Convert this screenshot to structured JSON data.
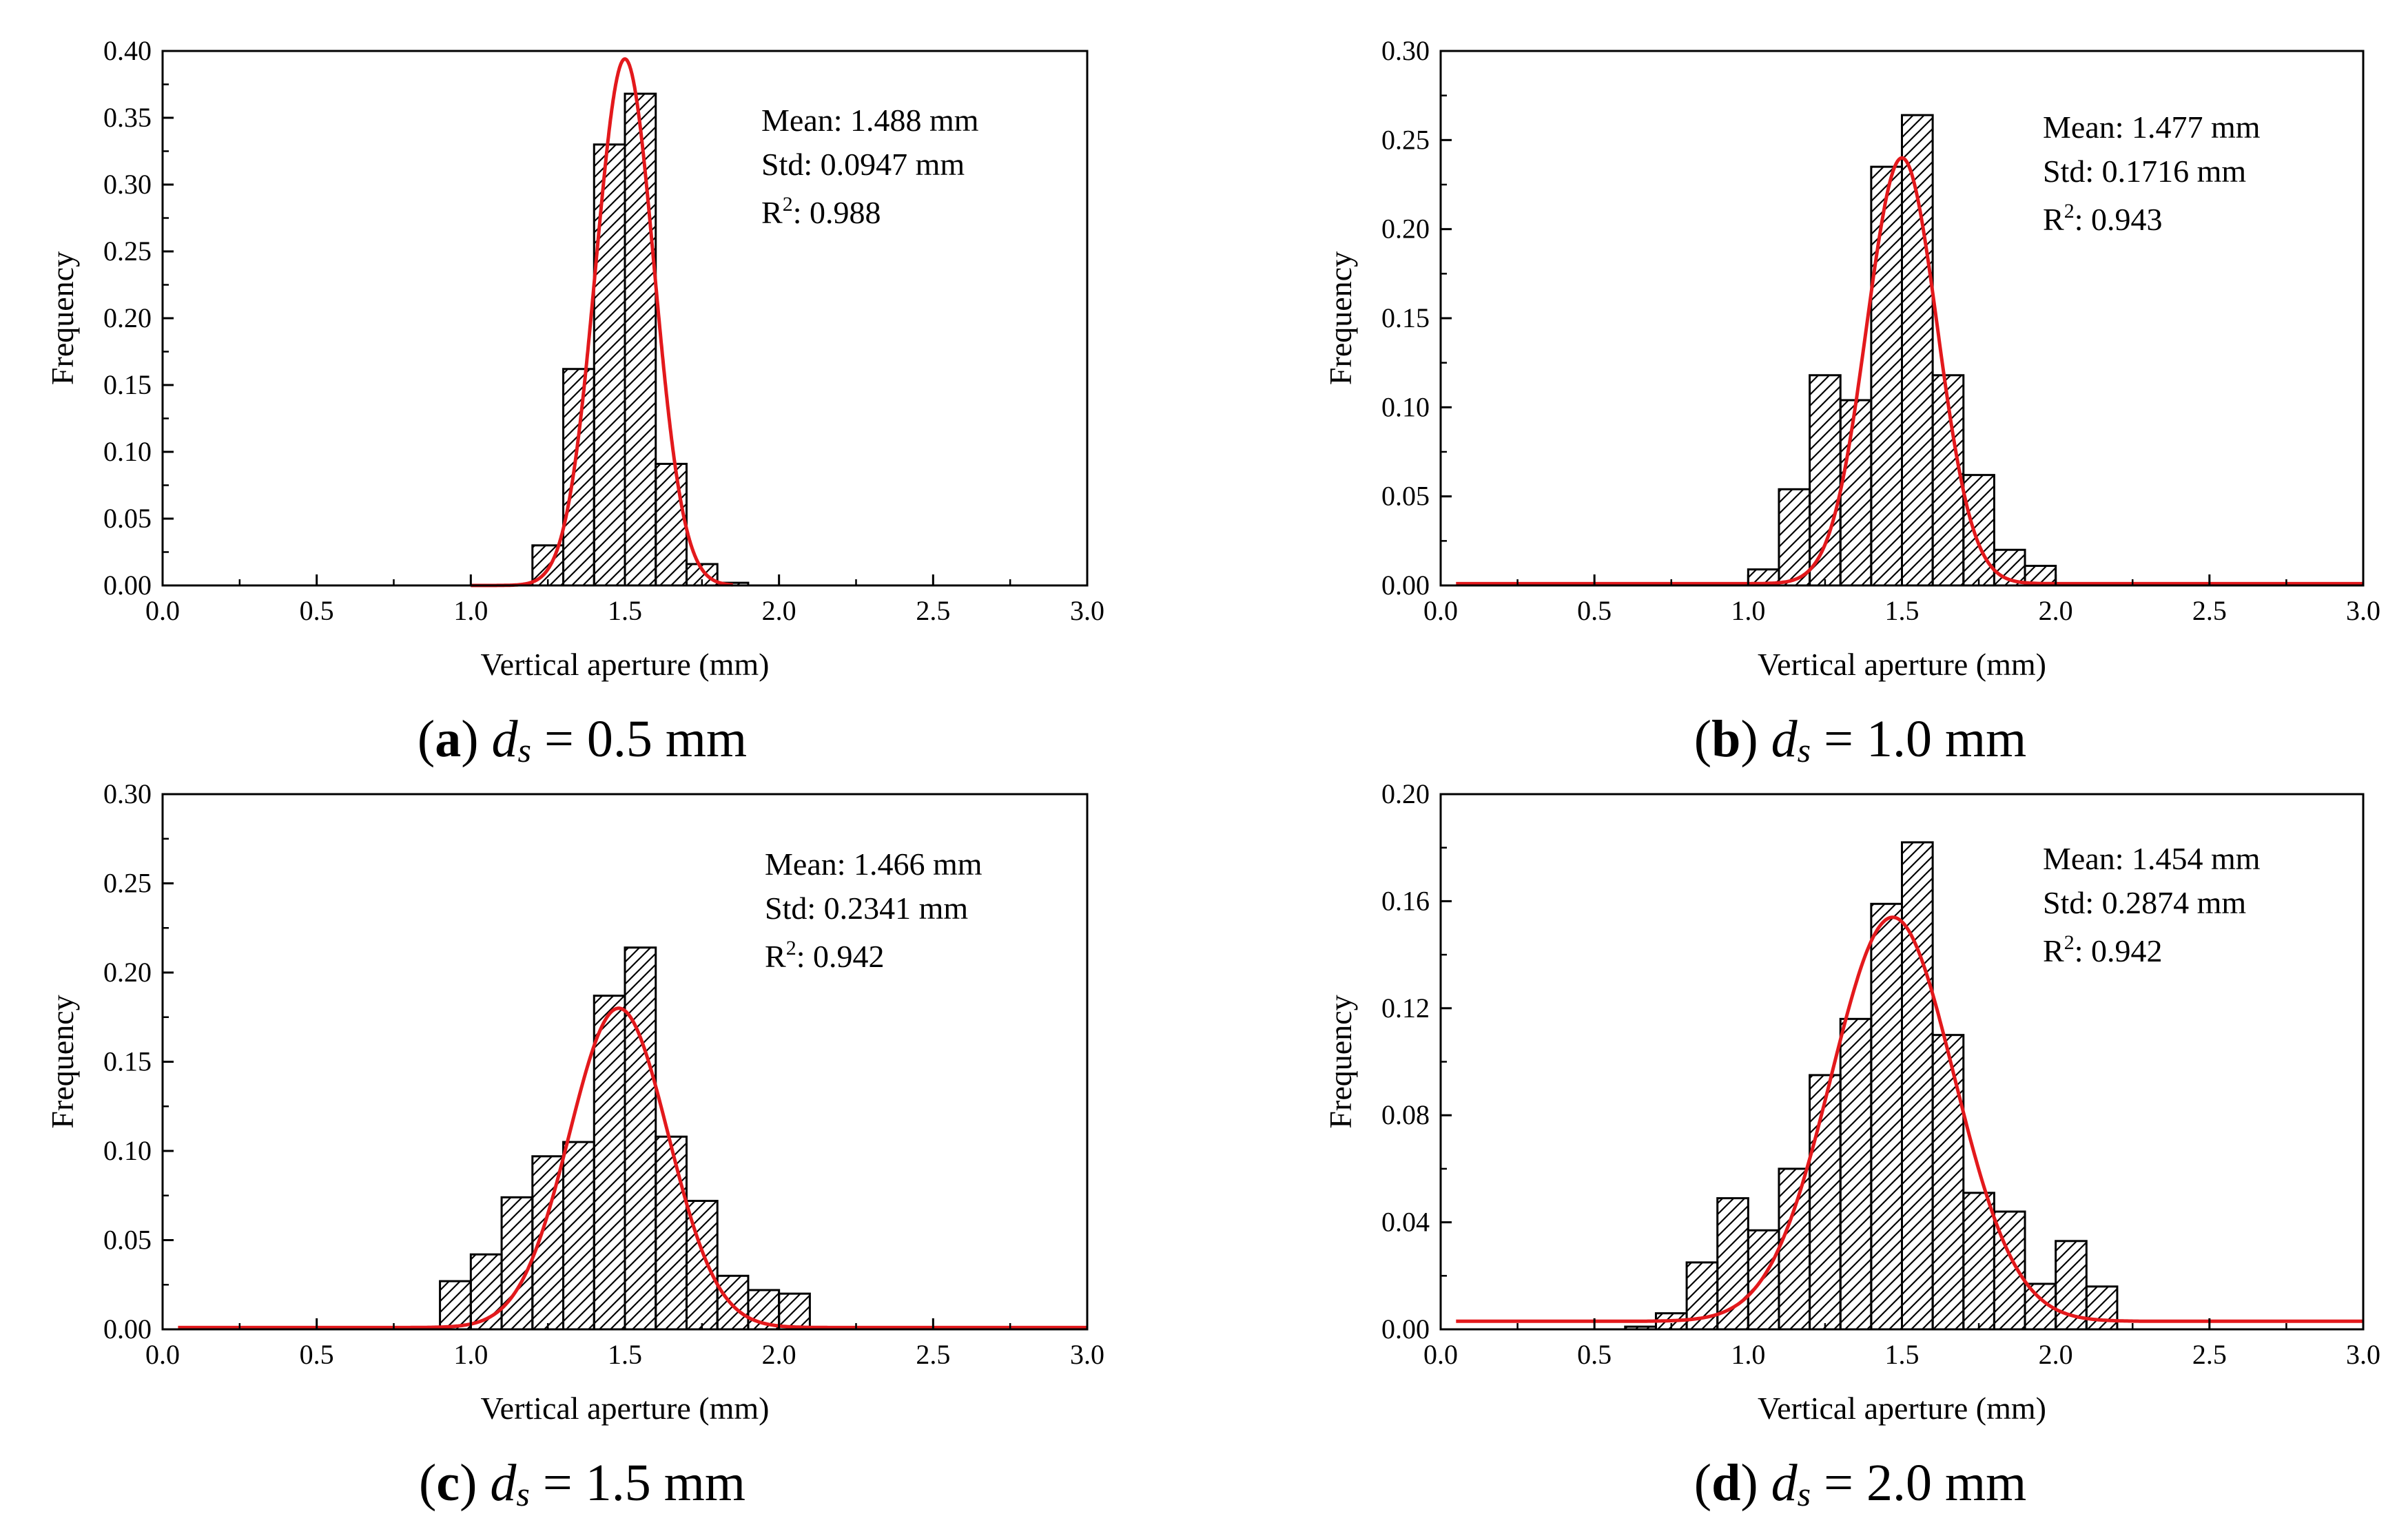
{
  "figure": {
    "colors": {
      "curve": "#e3191c",
      "bar_stroke": "#000000",
      "hatch": "#000000",
      "axis": "#000000"
    },
    "panels": [
      {
        "caption": {
          "letter": "a",
          "symbol": "d",
          "subscript": "s",
          "equals": "=",
          "value": "0.5 mm"
        }
      },
      {
        "caption": {
          "letter": "b",
          "symbol": "d",
          "subscript": "s",
          "equals": "=",
          "value": "1.0 mm"
        }
      },
      {
        "caption": {
          "letter": "c",
          "symbol": "d",
          "subscript": "s",
          "equals": "=",
          "value": "1.5 mm"
        }
      },
      {
        "caption": {
          "letter": "d",
          "symbol": "d",
          "subscript": "s",
          "equals": "=",
          "value": "2.0 mm"
        }
      }
    ]
  },
  "chart_data": [
    {
      "type": "bar",
      "title": "",
      "xlabel": "Vertical aperture (mm)",
      "ylabel": "Frequency",
      "xlim": [
        0,
        3
      ],
      "ylim": [
        0,
        0.4
      ],
      "xticks": [
        "0.0",
        "0.5",
        "1.0",
        "1.5",
        "2.0",
        "2.5",
        "3.0"
      ],
      "yticks": [
        "0.00",
        "0.05",
        "0.10",
        "0.15",
        "0.20",
        "0.25",
        "0.30",
        "0.35",
        "0.40"
      ],
      "bin_width": 0.1,
      "bin_centers": [
        1.25,
        1.35,
        1.45,
        1.55,
        1.65,
        1.75,
        1.85
      ],
      "values": [
        0.03,
        0.162,
        0.33,
        0.368,
        0.091,
        0.016,
        0.002
      ],
      "fit": {
        "type": "normal",
        "name": "Gaussian fit",
        "center": 1.5,
        "sigma": 0.0947,
        "peak": 0.394,
        "baseline": 0.0,
        "x_range": [
          1.0,
          1.85
        ]
      },
      "annotation": {
        "mean": "Mean: 1.488 mm",
        "std": "Std: 0.0947 mm",
        "r2_label": "R",
        "r2_sup": "2",
        "r2_value": ": 0.988"
      }
    },
    {
      "type": "bar",
      "title": "",
      "xlabel": "Vertical aperture (mm)",
      "ylabel": "Frequency",
      "xlim": [
        0,
        3
      ],
      "ylim": [
        0,
        0.3
      ],
      "xticks": [
        "0.0",
        "0.5",
        "1.0",
        "1.5",
        "2.0",
        "2.5",
        "3.0"
      ],
      "yticks": [
        "0.00",
        "0.05",
        "0.10",
        "0.15",
        "0.20",
        "0.25",
        "0.30"
      ],
      "bin_width": 0.1,
      "bin_centers": [
        1.05,
        1.15,
        1.25,
        1.35,
        1.45,
        1.55,
        1.65,
        1.75,
        1.85,
        1.95
      ],
      "values": [
        0.009,
        0.054,
        0.118,
        0.104,
        0.235,
        0.264,
        0.118,
        0.062,
        0.02,
        0.011
      ],
      "fit": {
        "type": "normal",
        "name": "Gaussian fit",
        "center": 1.5,
        "sigma": 0.1145,
        "peak": 0.24,
        "baseline": 0.001,
        "x_range": [
          0.05,
          3.0
        ]
      },
      "annotation": {
        "mean": "Mean: 1.477 mm",
        "std": "Std: 0.1716 mm",
        "r2_label": "R",
        "r2_sup": "2",
        "r2_value": ": 0.943"
      }
    },
    {
      "type": "bar",
      "title": "",
      "xlabel": "Vertical aperture (mm)",
      "ylabel": "Frequency",
      "xlim": [
        0,
        3
      ],
      "ylim": [
        0,
        0.3
      ],
      "xticks": [
        "0.0",
        "0.5",
        "1.0",
        "1.5",
        "2.0",
        "2.5",
        "3.0"
      ],
      "yticks": [
        "0.00",
        "0.05",
        "0.10",
        "0.15",
        "0.20",
        "0.25",
        "0.30"
      ],
      "bin_width": 0.1,
      "bin_centers": [
        0.95,
        1.05,
        1.15,
        1.25,
        1.35,
        1.45,
        1.55,
        1.65,
        1.75,
        1.85,
        1.95,
        2.05
      ],
      "values": [
        0.027,
        0.042,
        0.074,
        0.097,
        0.105,
        0.187,
        0.214,
        0.108,
        0.072,
        0.03,
        0.022,
        0.02
      ],
      "fit": {
        "type": "normal",
        "name": "Gaussian fit",
        "center": 1.48,
        "sigma": 0.16,
        "peak": 0.18,
        "baseline": 0.001,
        "x_range": [
          0.05,
          3.0
        ]
      },
      "annotation": {
        "mean": "Mean: 1.466 mm",
        "std": "Std: 0.2341 mm",
        "r2_label": "R",
        "r2_sup": "2",
        "r2_value": ": 0.942"
      }
    },
    {
      "type": "bar",
      "title": "",
      "xlabel": "Vertical aperture (mm)",
      "ylabel": "Frequency",
      "xlim": [
        0,
        3
      ],
      "ylim": [
        0,
        0.2
      ],
      "xticks": [
        "0.0",
        "0.5",
        "1.0",
        "1.5",
        "2.0",
        "2.5",
        "3.0"
      ],
      "yticks": [
        "0.00",
        "0.04",
        "0.08",
        "0.12",
        "0.16",
        "0.20"
      ],
      "bin_width": 0.1,
      "bin_centers": [
        0.65,
        0.75,
        0.85,
        0.95,
        1.05,
        1.15,
        1.25,
        1.35,
        1.45,
        1.55,
        1.65,
        1.75,
        1.85,
        1.95,
        2.05,
        2.15
      ],
      "values": [
        0.001,
        0.006,
        0.025,
        0.049,
        0.037,
        0.06,
        0.095,
        0.116,
        0.159,
        0.182,
        0.11,
        0.051,
        0.044,
        0.017,
        0.033,
        0.016
      ],
      "fit": {
        "type": "normal",
        "name": "Gaussian fit",
        "center": 1.47,
        "sigma": 0.2,
        "peak": 0.154,
        "baseline": 0.003,
        "x_range": [
          0.05,
          3.0
        ]
      },
      "annotation": {
        "mean": "Mean: 1.454 mm",
        "std": "Std: 0.2874 mm",
        "r2_label": "R",
        "r2_sup": "2",
        "r2_value": ": 0.942"
      }
    }
  ]
}
